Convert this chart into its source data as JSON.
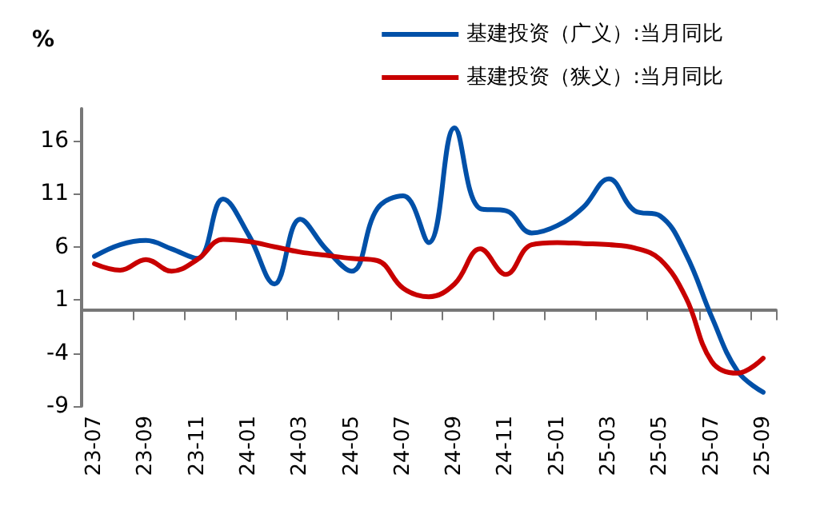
{
  "chart_data": {
    "type": "line",
    "ylabel": "%",
    "categories": [
      "23-07",
      null,
      "23-09",
      null,
      "23-11",
      null,
      "24-01",
      null,
      "24-03",
      null,
      "24-05",
      null,
      "24-07",
      null,
      "24-09",
      null,
      "24-11",
      null,
      "25-01",
      null,
      "25-03",
      null,
      "25-05",
      null,
      "25-07",
      null,
      "25-09"
    ],
    "series": [
      {
        "name": "基建投资（广义）:当月同比",
        "color": "#0050a8",
        "values": [
          5.1,
          6.2,
          6.6,
          5.8,
          4.9,
          10.5,
          7.1,
          2.5,
          8.6,
          5.8,
          3.7,
          9.6,
          10.8,
          6.4,
          17.2,
          9.6,
          9.4,
          7.3,
          8.0,
          9.7,
          12.4,
          9.4,
          8.9,
          5.3,
          -0.6,
          -5.7,
          -7.7
        ]
      },
      {
        "name": "基建投资（狭义）:当月同比",
        "color": "#c80000",
        "values": [
          4.4,
          3.8,
          4.8,
          3.7,
          4.8,
          6.7,
          6.5,
          6.0,
          5.5,
          5.2,
          4.9,
          4.7,
          2.1,
          1.3,
          2.5,
          5.8,
          3.4,
          6.2,
          6.4,
          6.3,
          6.2,
          5.9,
          4.8,
          1.2,
          -4.8,
          -5.9,
          -4.5
        ]
      }
    ],
    "ylim": [
      -9,
      19
    ],
    "yticks": [
      -9,
      -4,
      1,
      6,
      11,
      16
    ],
    "grid": false,
    "legend": "top right",
    "marker": "none",
    "line_style": "solid"
  }
}
